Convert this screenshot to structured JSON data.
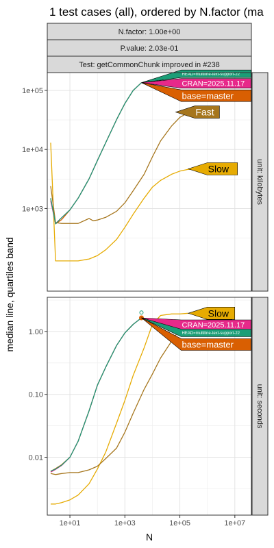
{
  "title": "1 test cases (all), ordered by N.factor (ma",
  "strips": [
    "N.factor: 1.00e+00",
    "P.value: 2.03e-01",
    "Test: getCommonChunk improved in #238"
  ],
  "ylabel": "median line, quartiles band",
  "xlabel": "N",
  "xticks": [
    {
      "value": 10,
      "label": "1e+01"
    },
    {
      "value": 1000,
      "label": "1e+03"
    },
    {
      "value": 100000,
      "label": "1e+05"
    },
    {
      "value": 10000000,
      "label": "1e+07"
    }
  ],
  "colors": {
    "head": "#1B9E77",
    "cran": "#E7298A",
    "base": "#D95F02",
    "fast": "#A6761D",
    "slow": "#E6AB02",
    "grid": "#ebebeb",
    "strip": "#d9d9d9"
  },
  "chart_data": [
    {
      "type": "line",
      "facet": "unit: kilobytes",
      "yscale": "log",
      "xscale": "log",
      "xlim": [
        1.5,
        40000000
      ],
      "ylim": [
        40,
        200000
      ],
      "yticks": [
        {
          "value": 1000,
          "label": "1e+03"
        },
        {
          "value": 10000,
          "label": "1e+04"
        },
        {
          "value": 100000,
          "label": "1e+05"
        }
      ],
      "series": [
        {
          "name": "HEAD=multiline-text-support-22",
          "key": "head",
          "x": [
            2,
            3,
            5,
            10,
            20,
            50,
            100,
            200,
            500,
            1000,
            2000,
            4000
          ],
          "y": [
            1500,
            550,
            700,
            950,
            1500,
            3200,
            6500,
            13000,
            32000,
            60000,
            100000,
            135000
          ]
        },
        {
          "name": "CRAN=2025.11.17",
          "key": "cran",
          "x": [
            2,
            3,
            5,
            10,
            20,
            50,
            100,
            200,
            500,
            1000,
            2000,
            4000
          ],
          "y": [
            1350,
            560,
            700,
            950,
            1500,
            3200,
            6500,
            13000,
            32000,
            60000,
            100000,
            135000
          ]
        },
        {
          "name": "base=master",
          "key": "base",
          "x": [
            2,
            3,
            5,
            10,
            20,
            50,
            100,
            200,
            500,
            1000,
            2000,
            4000
          ],
          "y": [
            1450,
            550,
            650,
            950,
            1500,
            3200,
            6500,
            13000,
            32000,
            60000,
            100000,
            135000
          ]
        },
        {
          "name": "Fast",
          "key": "fast",
          "x": [
            2,
            3,
            5,
            10,
            20,
            50,
            70,
            100,
            200,
            500,
            1000,
            2000,
            5000,
            10000,
            20000,
            50000,
            100000,
            200000
          ],
          "y": [
            2400,
            580,
            560,
            560,
            560,
            680,
            620,
            640,
            710,
            900,
            1250,
            2000,
            3800,
            7500,
            14000,
            25000,
            35000,
            42000
          ]
        },
        {
          "name": "Slow",
          "key": "slow",
          "x": [
            2,
            3,
            5,
            10,
            20,
            50,
            100,
            200,
            500,
            1000,
            2000,
            5000,
            10000,
            20000,
            50000,
            100000,
            200000,
            500000
          ],
          "y": [
            13000,
            130,
            130,
            130,
            130,
            140,
            160,
            200,
            300,
            480,
            800,
            1500,
            2300,
            3000,
            3800,
            4300,
            4600,
            4700
          ]
        }
      ],
      "labels": [
        {
          "text": "HEAD=multiline-text-support-22",
          "key": "head",
          "at": [
            4000,
            135000
          ]
        },
        {
          "text": "CRAN=2025.11.17",
          "key": "cran",
          "at": [
            4000,
            135000
          ]
        },
        {
          "text": "base=master",
          "key": "base",
          "at": [
            4000,
            135000
          ]
        },
        {
          "text": "Fast",
          "key": "fast",
          "at": [
            70000,
            43000
          ]
        },
        {
          "text": "Slow",
          "key": "slow",
          "at": [
            200000,
            4700
          ]
        }
      ]
    },
    {
      "type": "line",
      "facet": "unit: seconds",
      "yscale": "log",
      "xscale": "log",
      "xlim": [
        1.5,
        40000000
      ],
      "ylim": [
        0.0012,
        3.5
      ],
      "yticks": [
        {
          "value": 0.01,
          "label": "0.01"
        },
        {
          "value": 0.1,
          "label": "0.10"
        },
        {
          "value": 1,
          "label": "1.00"
        }
      ],
      "series": [
        {
          "name": "HEAD=multiline-text-support-22",
          "key": "head",
          "x": [
            2,
            3,
            5,
            10,
            20,
            50,
            100,
            200,
            500,
            1000,
            2000,
            4000
          ],
          "y": [
            0.006,
            0.0065,
            0.0075,
            0.01,
            0.018,
            0.055,
            0.14,
            0.27,
            0.6,
            0.95,
            1.3,
            1.65
          ]
        },
        {
          "name": "CRAN=2025.11.17",
          "key": "cran",
          "x": [
            2,
            3,
            5,
            10,
            20,
            50,
            100,
            200,
            500,
            1000,
            2000,
            4000
          ],
          "y": [
            0.0058,
            0.0064,
            0.0074,
            0.01,
            0.018,
            0.055,
            0.14,
            0.27,
            0.6,
            0.95,
            1.3,
            1.65
          ]
        },
        {
          "name": "base=master",
          "key": "base",
          "x": [
            2,
            3,
            5,
            10,
            20,
            50,
            100,
            200,
            500,
            1000,
            2000,
            4000
          ],
          "y": [
            0.006,
            0.0066,
            0.0076,
            0.01,
            0.018,
            0.055,
            0.14,
            0.27,
            0.6,
            0.95,
            1.3,
            1.65
          ]
        },
        {
          "name": "Fast",
          "key": "fast",
          "x": [
            2,
            3,
            5,
            10,
            20,
            50,
            100,
            200,
            500,
            1000,
            2000,
            5000,
            10000,
            20000,
            50000,
            100000,
            200000
          ],
          "y": [
            0.0055,
            0.0053,
            0.0055,
            0.0057,
            0.0057,
            0.0063,
            0.0072,
            0.0095,
            0.014,
            0.025,
            0.05,
            0.12,
            0.21,
            0.38,
            0.7,
            1.1,
            1.45
          ]
        },
        {
          "name": "Slow",
          "key": "slow",
          "x": [
            2,
            3,
            5,
            10,
            20,
            50,
            100,
            200,
            500,
            1000,
            2000,
            5000,
            10000,
            20000,
            50000,
            100000,
            200000
          ],
          "y": [
            0.0018,
            0.0018,
            0.0019,
            0.0021,
            0.0025,
            0.0038,
            0.0065,
            0.012,
            0.035,
            0.08,
            0.2,
            0.55,
            1.3,
            1.8,
            1.9,
            1.9,
            1.95
          ]
        }
      ],
      "labels": [
        {
          "text": "Slow",
          "key": "slow",
          "at": [
            200000,
            1.95
          ]
        },
        {
          "text": "Fast",
          "key": "fast",
          "at": [
            200000,
            1.45
          ]
        },
        {
          "text": "CRAN=2025.11.17",
          "key": "cran",
          "at": [
            4000,
            1.65
          ]
        },
        {
          "text": "HEAD=multiline-text-support-22",
          "key": "head",
          "at": [
            4000,
            1.65
          ]
        },
        {
          "text": "base=master",
          "key": "base",
          "at": [
            4000,
            1.65
          ]
        }
      ]
    }
  ]
}
